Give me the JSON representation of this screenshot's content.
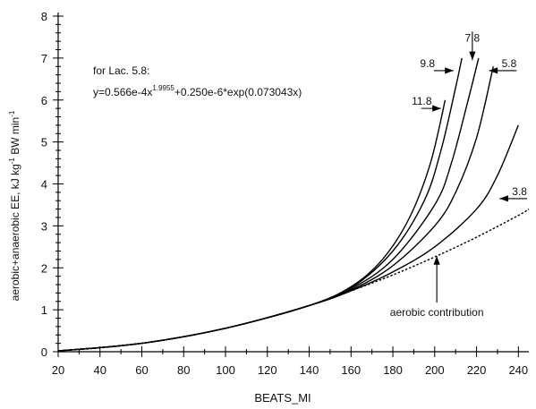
{
  "chart_data": {
    "type": "line",
    "xlabel": "BEATS_MI",
    "ylabel_main": "aerobic+anaerobic EE, kJ kg",
    "ylabel_sup1": "-1",
    "ylabel_mid": " BW min",
    "ylabel_sup2": "-1",
    "xlim": [
      20,
      245
    ],
    "ylim": [
      0,
      8
    ],
    "x_ticks": [
      "20",
      "40",
      "60",
      "80",
      "100",
      "120",
      "140",
      "160",
      "180",
      "200",
      "220",
      "240"
    ],
    "y_ticks": [
      "0",
      "1",
      "2",
      "3",
      "4",
      "5",
      "6",
      "7",
      "8"
    ],
    "formula": {
      "line1": "for Lac. 5.8:",
      "line2_a": "y=0.566e-4x",
      "line2_exp": "1.9955",
      "line2_b": "+0.250e-6*exp(0.073043x)"
    },
    "series": [
      {
        "name": "aerobic contribution",
        "style": "dotted",
        "x": [
          20,
          40,
          60,
          80,
          100,
          120,
          140,
          160,
          180,
          200,
          220,
          240,
          245
        ],
        "y": [
          0.02,
          0.09,
          0.2,
          0.36,
          0.56,
          0.81,
          1.1,
          1.45,
          1.83,
          2.26,
          2.73,
          3.25,
          3.4
        ]
      },
      {
        "name": "3.8",
        "style": "solid",
        "x": [
          20,
          60,
          100,
          140,
          160,
          180,
          200,
          220,
          230,
          240
        ],
        "y": [
          0.02,
          0.2,
          0.56,
          1.1,
          1.45,
          1.9,
          2.5,
          3.4,
          4.2,
          5.4
        ]
      },
      {
        "name": "5.8",
        "style": "solid",
        "x": [
          20,
          60,
          100,
          140,
          160,
          180,
          200,
          210,
          220,
          228
        ],
        "y": [
          0.02,
          0.2,
          0.56,
          1.1,
          1.47,
          2.05,
          3.0,
          3.8,
          5.1,
          6.8
        ]
      },
      {
        "name": "7.8",
        "style": "solid",
        "x": [
          20,
          60,
          100,
          140,
          160,
          180,
          200,
          208,
          216,
          221
        ],
        "y": [
          0.02,
          0.2,
          0.56,
          1.1,
          1.5,
          2.2,
          3.5,
          4.5,
          6.0,
          7.0
        ]
      },
      {
        "name": "9.8",
        "style": "solid",
        "x": [
          20,
          60,
          100,
          140,
          160,
          180,
          195,
          203,
          210,
          213
        ],
        "y": [
          0.02,
          0.2,
          0.56,
          1.1,
          1.52,
          2.4,
          3.6,
          4.8,
          6.3,
          7.0
        ]
      },
      {
        "name": "11.8",
        "style": "solid",
        "x": [
          20,
          60,
          100,
          140,
          160,
          175,
          188,
          198,
          205
        ],
        "y": [
          0.02,
          0.2,
          0.56,
          1.1,
          1.55,
          2.2,
          3.2,
          4.5,
          6.0
        ]
      }
    ],
    "annotations": [
      {
        "text": "7.8",
        "tx": 218,
        "ty": 7.35,
        "ax": 218,
        "ay": 6.95,
        "dir": "down"
      },
      {
        "text": "9.8",
        "tx": 193,
        "ty": 6.9,
        "ax": 209,
        "ay": 6.7,
        "dir": "right"
      },
      {
        "text": "5.8",
        "tx": 238,
        "ty": 6.7,
        "ax": 226,
        "ay": 6.7,
        "dir": "left"
      },
      {
        "text": "11.8",
        "tx": 189,
        "ty": 5.8,
        "ax": 203,
        "ay": 5.8,
        "dir": "right"
      },
      {
        "text": "3.8",
        "tx": 245,
        "ty": 3.65,
        "ax": 231,
        "ay": 3.65,
        "dir": "left"
      },
      {
        "text": "aerobic contribution",
        "tx": 201,
        "ty": 1.7,
        "ax": 201,
        "ay": 2.28,
        "dir": "up"
      }
    ]
  }
}
